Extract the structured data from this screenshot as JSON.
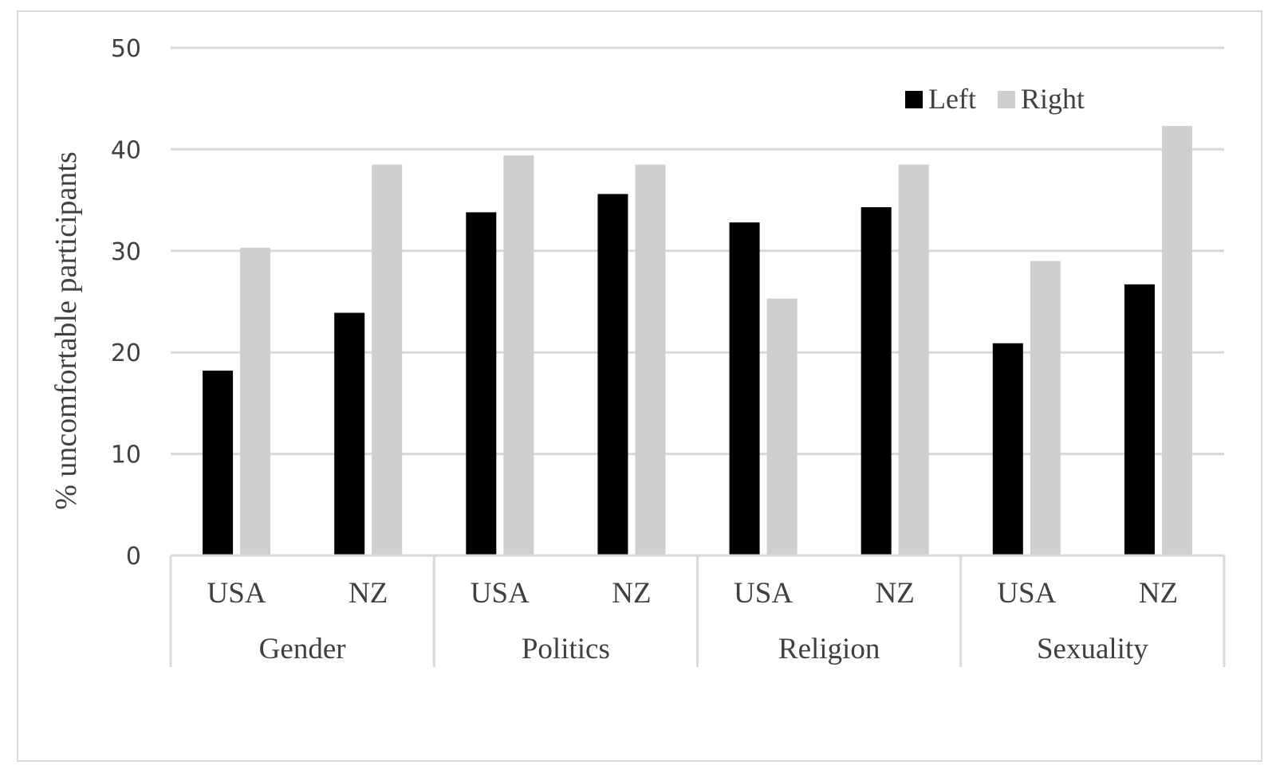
{
  "chart_data": {
    "type": "bar",
    "ylabel": "% uncomfortable participants",
    "ylim": [
      0,
      50
    ],
    "yticks": [
      0,
      10,
      20,
      30,
      40,
      50
    ],
    "grid": true,
    "legend_position": "top-right",
    "groups": [
      {
        "name": "Gender",
        "categories": [
          "USA",
          "NZ"
        ]
      },
      {
        "name": "Politics",
        "categories": [
          "USA",
          "NZ"
        ]
      },
      {
        "name": "Religion",
        "categories": [
          "USA",
          "NZ"
        ]
      },
      {
        "name": "Sexuality",
        "categories": [
          "USA",
          "NZ"
        ]
      }
    ],
    "categories": [
      "Gender USA",
      "Gender NZ",
      "Politics USA",
      "Politics NZ",
      "Religion USA",
      "Religion NZ",
      "Sexuality USA",
      "Sexuality NZ"
    ],
    "series": [
      {
        "name": "Left",
        "color": "#000000",
        "values": [
          18.2,
          23.9,
          33.8,
          35.6,
          32.8,
          34.3,
          20.9,
          26.7
        ]
      },
      {
        "name": "Right",
        "color": "#d0cece",
        "values": [
          30.3,
          38.5,
          39.4,
          38.5,
          25.3,
          38.5,
          29.0,
          42.3
        ]
      }
    ]
  }
}
